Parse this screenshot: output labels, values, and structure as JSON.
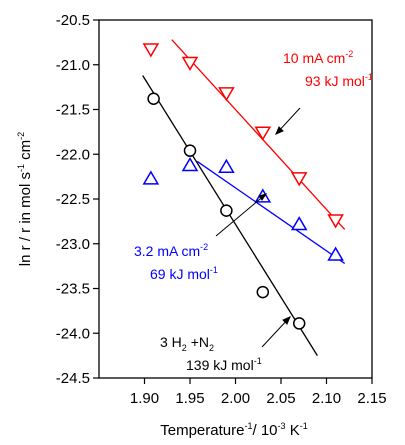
{
  "chart_data": {
    "type": "scatter",
    "xlabel": {
      "main": "Temperature",
      "sup": "-1",
      "tail": "/ 10",
      "sup2": "-3",
      "tail2": " K",
      "sup3": "-1"
    },
    "ylabel": {
      "main": "ln r / r in mol s",
      "sup": "-1",
      "tail": " cm",
      "sup2": "-2"
    },
    "xlim": [
      1.85,
      2.15
    ],
    "ylim": [
      -24.5,
      -20.5
    ],
    "x_ticks": [
      "1.90",
      "1.95",
      "2.00",
      "2.05",
      "2.10",
      "2.15"
    ],
    "x_tick_values": [
      1.9,
      1.95,
      2.0,
      2.05,
      2.1,
      2.15
    ],
    "y_ticks": [
      "-20.5",
      "-21.0",
      "-21.5",
      "-22.0",
      "-22.5",
      "-23.0",
      "-23.5",
      "-24.0",
      "-24.5"
    ],
    "y_tick_values": [
      -20.5,
      -21.0,
      -21.5,
      -22.0,
      -22.5,
      -23.0,
      -23.5,
      -24.0,
      -24.5
    ],
    "series": [
      {
        "marker": "triangle-down",
        "color": "#ff0000",
        "points": [
          [
            1.907,
            -20.83
          ],
          [
            1.95,
            -20.98
          ],
          [
            1.99,
            -21.32
          ],
          [
            2.03,
            -21.76
          ],
          [
            2.07,
            -22.27
          ],
          [
            2.11,
            -22.74
          ]
        ],
        "fit": [
          [
            1.93,
            -20.72
          ],
          [
            2.12,
            -22.84
          ]
        ],
        "annotation": {
          "line1": "10 mA cm",
          "line1_sup": "-2",
          "line2": "93 kJ mol",
          "line2_sup": "-1"
        }
      },
      {
        "marker": "triangle-up",
        "color": "#0000ff",
        "points": [
          [
            1.907,
            -22.27
          ],
          [
            1.95,
            -22.12
          ],
          [
            1.99,
            -22.14
          ],
          [
            2.03,
            -22.47
          ],
          [
            2.07,
            -22.78
          ],
          [
            2.11,
            -23.12
          ]
        ],
        "fit": [
          [
            1.958,
            -22.08
          ],
          [
            2.12,
            -23.22
          ]
        ],
        "annotation": {
          "line1": "3.2 mA cm",
          "line1_sup": "-2",
          "line2": "69 kJ mol",
          "line2_sup": "-1"
        }
      },
      {
        "marker": "circle",
        "color": "#000000",
        "points": [
          [
            1.91,
            -21.38
          ],
          [
            1.95,
            -21.96
          ],
          [
            1.99,
            -22.63
          ],
          [
            2.03,
            -23.54
          ],
          [
            2.07,
            -23.89
          ]
        ],
        "fit": [
          [
            1.898,
            -21.12
          ],
          [
            2.09,
            -24.25
          ]
        ],
        "annotation": {
          "line1a": "3 H",
          "line1a_sub": "2",
          "line1b": " +N",
          "line1b_sub": "2",
          "line2": "139 kJ mol",
          "line2_sup": "-1"
        }
      }
    ]
  }
}
